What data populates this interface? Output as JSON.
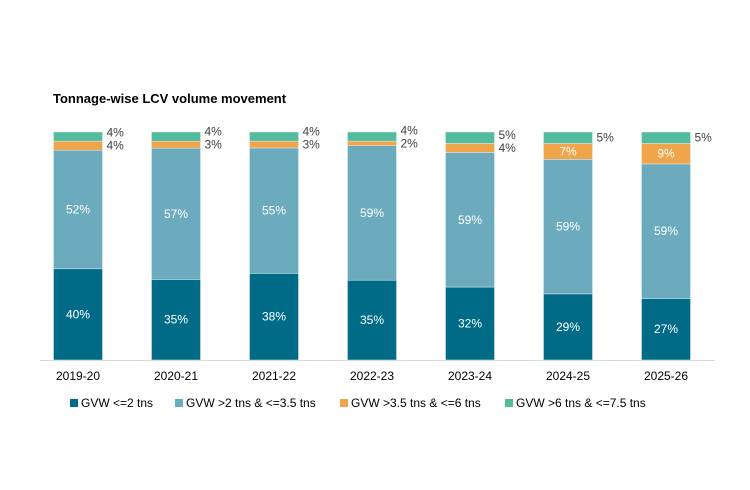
{
  "chart_data": {
    "type": "bar",
    "stacked": true,
    "percent_stacked": true,
    "title": "Tonnage-wise LCV volume movement",
    "categories": [
      "2019-20",
      "2020-21",
      "2021-22",
      "2022-23",
      "2023-24",
      "2024-25",
      "2025-26"
    ],
    "series": [
      {
        "name": "GVW <=2 tns",
        "color": "#006b86",
        "values": [
          40,
          35,
          38,
          35,
          32,
          29,
          27
        ]
      },
      {
        "name": "GVW >2 tns & <=3.5 tns",
        "color": "#6babbd",
        "values": [
          52,
          57,
          55,
          59,
          59,
          59,
          59
        ]
      },
      {
        "name": "GVW >3.5 tns & <=6 tns",
        "color": "#f0a54a",
        "values": [
          4,
          3,
          3,
          2,
          4,
          7,
          9
        ]
      },
      {
        "name": "GVW >6 tns & <=7.5 tns",
        "color": "#52bc9e",
        "values": [
          4,
          4,
          4,
          4,
          5,
          5,
          5
        ]
      }
    ],
    "unit": "%",
    "legend_position": "bottom",
    "grid": false,
    "ylim": [
      0,
      100
    ]
  }
}
